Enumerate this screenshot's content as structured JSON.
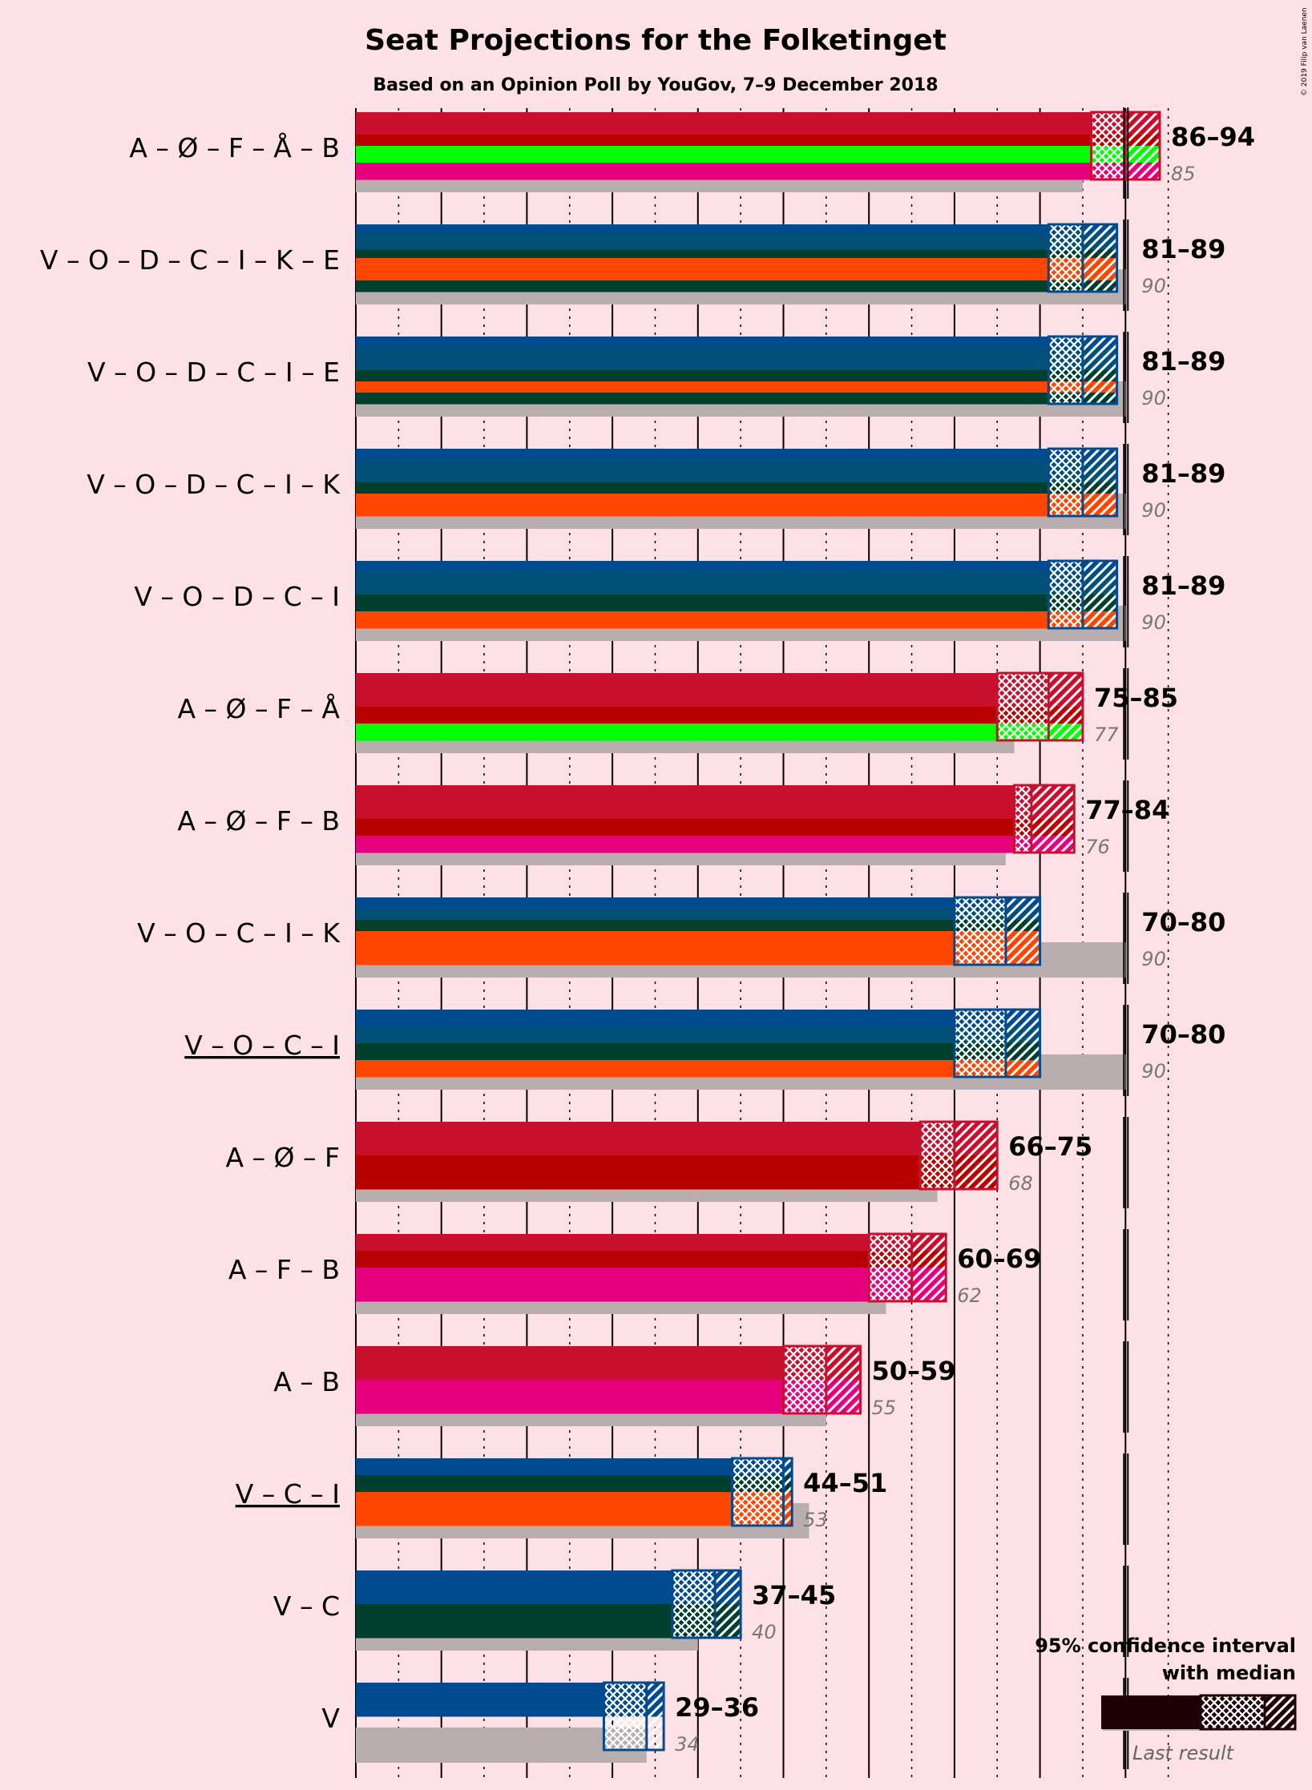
{
  "title": "Seat Projections for the Folketinget",
  "subtitle": "Based on an Opinion Poll by YouGov, 7–9 December 2018",
  "copyright": "© 2019 Filip van Laenen",
  "legend": {
    "line1": "95% confidence interval",
    "line2": "with median",
    "last_result": "Last result"
  },
  "colors": {
    "background": "#FEE1E6",
    "A": "#C8102E",
    "O": "#005078",
    "V": "#004A90",
    "F": "#B80000",
    "Å": "#00FF00",
    "B": "#E6007E",
    "C": "#003F2E",
    "I": "#FF4500",
    "K": "#FF4500",
    "E": "#003F2E",
    "last_bar": "#B8AEB0",
    "majority_line": "#000000"
  },
  "chart_data": {
    "type": "bar",
    "orientation": "horizontal",
    "xlim": [
      0,
      95
    ],
    "majority": 90,
    "rows": [
      {
        "label": "A – Ø – F – Å – B",
        "parties": [
          "A",
          "Ø",
          "F",
          "Å",
          "B"
        ],
        "low": 86,
        "median": 90,
        "high": 94,
        "range": "86–94",
        "last": 85,
        "underlined": false
      },
      {
        "label": "V – O – D – C – I – K – E",
        "parties": [
          "V",
          "O",
          "D",
          "C",
          "I",
          "K",
          "E"
        ],
        "low": 81,
        "median": 85,
        "high": 89,
        "range": "81–89",
        "last": 90,
        "underlined": false
      },
      {
        "label": "V – O – D – C – I – E",
        "parties": [
          "V",
          "O",
          "D",
          "C",
          "I",
          "E"
        ],
        "low": 81,
        "median": 85,
        "high": 89,
        "range": "81–89",
        "last": 90,
        "underlined": false
      },
      {
        "label": "V – O – D – C – I – K",
        "parties": [
          "V",
          "O",
          "D",
          "C",
          "I",
          "K"
        ],
        "low": 81,
        "median": 85,
        "high": 89,
        "range": "81–89",
        "last": 90,
        "underlined": false
      },
      {
        "label": "V – O – D – C – I",
        "parties": [
          "V",
          "O",
          "D",
          "C",
          "I"
        ],
        "low": 81,
        "median": 85,
        "high": 89,
        "range": "81–89",
        "last": 90,
        "underlined": false
      },
      {
        "label": "A – Ø – F – Å",
        "parties": [
          "A",
          "Ø",
          "F",
          "Å"
        ],
        "low": 75,
        "median": 81,
        "high": 85,
        "range": "75–85",
        "last": 77,
        "underlined": false
      },
      {
        "label": "A – Ø – F – B",
        "parties": [
          "A",
          "Ø",
          "F",
          "B"
        ],
        "low": 77,
        "median": 79,
        "high": 84,
        "range": "77–84",
        "last": 76,
        "underlined": false
      },
      {
        "label": "V – O – C – I – K",
        "parties": [
          "V",
          "O",
          "C",
          "I",
          "K"
        ],
        "low": 70,
        "median": 76,
        "high": 80,
        "range": "70–80",
        "last": 90,
        "underlined": false
      },
      {
        "label": "V – O – C – I",
        "parties": [
          "V",
          "O",
          "C",
          "I"
        ],
        "low": 70,
        "median": 76,
        "high": 80,
        "range": "70–80",
        "last": 90,
        "underlined": true
      },
      {
        "label": "A – Ø – F",
        "parties": [
          "A",
          "Ø",
          "F"
        ],
        "low": 66,
        "median": 70,
        "high": 75,
        "range": "66–75",
        "last": 68,
        "underlined": false
      },
      {
        "label": "A – F – B",
        "parties": [
          "A",
          "F",
          "B"
        ],
        "low": 60,
        "median": 65,
        "high": 69,
        "range": "60–69",
        "last": 62,
        "underlined": false
      },
      {
        "label": "A – B",
        "parties": [
          "A",
          "B"
        ],
        "low": 50,
        "median": 55,
        "high": 59,
        "range": "50–59",
        "last": 55,
        "underlined": false
      },
      {
        "label": "V – C – I",
        "parties": [
          "V",
          "C",
          "I"
        ],
        "low": 44,
        "median": 50,
        "high": 51,
        "range": "44–51",
        "last": 53,
        "underlined": true
      },
      {
        "label": "V – C",
        "parties": [
          "V",
          "C"
        ],
        "low": 37,
        "median": 42,
        "high": 45,
        "range": "37–45",
        "last": 40,
        "underlined": false
      },
      {
        "label": "V",
        "parties": [
          "V"
        ],
        "low": 29,
        "median": 34,
        "high": 36,
        "range": "29–36",
        "last": 34,
        "underlined": false
      }
    ]
  }
}
